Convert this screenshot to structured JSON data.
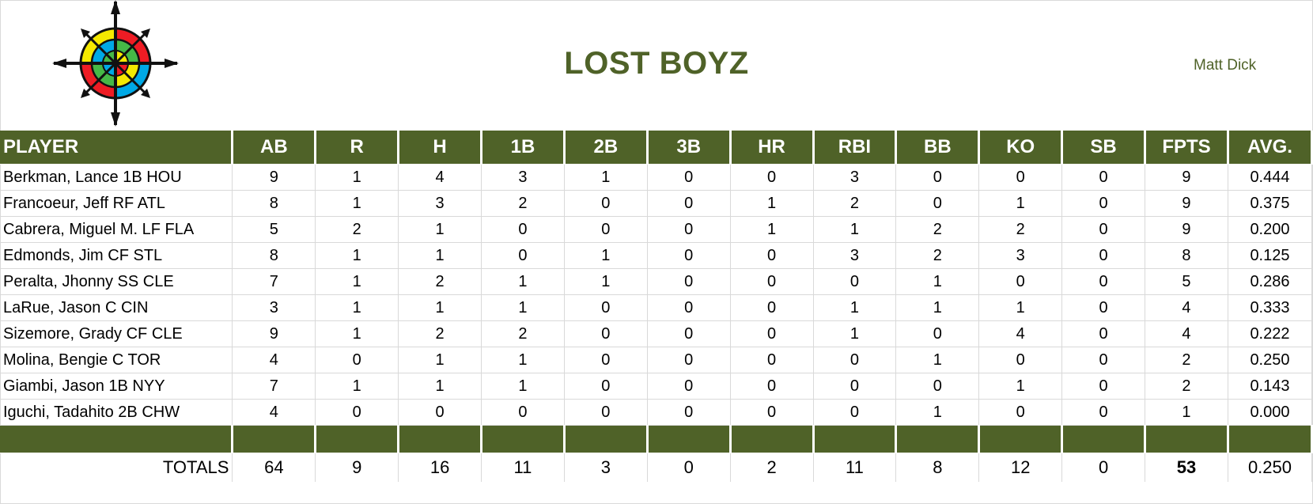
{
  "team": {
    "name": "LOST BOYZ",
    "owner": "Matt Dick",
    "logo_icon": "compass-rose-icon"
  },
  "colors": {
    "header_green": "#4f6228",
    "title_green": "#4f6228"
  },
  "columns": [
    "PLAYER",
    "AB",
    "R",
    "H",
    "1B",
    "2B",
    "3B",
    "HR",
    "RBI",
    "BB",
    "KO",
    "SB",
    "FPTS",
    "AVG."
  ],
  "players": [
    {
      "cells": [
        "Berkman, Lance 1B HOU",
        "9",
        "1",
        "4",
        "3",
        "1",
        "0",
        "0",
        "3",
        "0",
        "0",
        "0",
        "9",
        "0.444"
      ]
    },
    {
      "cells": [
        "Francoeur, Jeff RF ATL",
        "8",
        "1",
        "3",
        "2",
        "0",
        "0",
        "1",
        "2",
        "0",
        "1",
        "0",
        "9",
        "0.375"
      ]
    },
    {
      "cells": [
        "Cabrera, Miguel M. LF FLA",
        "5",
        "2",
        "1",
        "0",
        "0",
        "0",
        "1",
        "1",
        "2",
        "2",
        "0",
        "9",
        "0.200"
      ]
    },
    {
      "cells": [
        "Edmonds, Jim CF STL",
        "8",
        "1",
        "1",
        "0",
        "1",
        "0",
        "0",
        "3",
        "2",
        "3",
        "0",
        "8",
        "0.125"
      ]
    },
    {
      "cells": [
        "Peralta, Jhonny SS CLE",
        "7",
        "1",
        "2",
        "1",
        "1",
        "0",
        "0",
        "0",
        "1",
        "0",
        "0",
        "5",
        "0.286"
      ]
    },
    {
      "cells": [
        "LaRue, Jason C CIN",
        "3",
        "1",
        "1",
        "1",
        "0",
        "0",
        "0",
        "1",
        "1",
        "1",
        "0",
        "4",
        "0.333"
      ]
    },
    {
      "cells": [
        "Sizemore, Grady CF CLE",
        "9",
        "1",
        "2",
        "2",
        "0",
        "0",
        "0",
        "1",
        "0",
        "4",
        "0",
        "4",
        "0.222"
      ]
    },
    {
      "cells": [
        "Molina, Bengie C TOR",
        "4",
        "0",
        "1",
        "1",
        "0",
        "0",
        "0",
        "0",
        "1",
        "0",
        "0",
        "2",
        "0.250"
      ]
    },
    {
      "cells": [
        "Giambi, Jason 1B NYY",
        "7",
        "1",
        "1",
        "1",
        "0",
        "0",
        "0",
        "0",
        "0",
        "1",
        "0",
        "2",
        "0.143"
      ]
    },
    {
      "cells": [
        "Iguchi, Tadahito 2B CHW",
        "4",
        "0",
        "0",
        "0",
        "0",
        "0",
        "0",
        "0",
        "1",
        "0",
        "0",
        "1",
        "0.000"
      ]
    }
  ],
  "totals": {
    "cells": [
      "TOTALS",
      "64",
      "9",
      "16",
      "11",
      "3",
      "0",
      "2",
      "11",
      "8",
      "12",
      "0",
      "53",
      "0.250"
    ]
  }
}
